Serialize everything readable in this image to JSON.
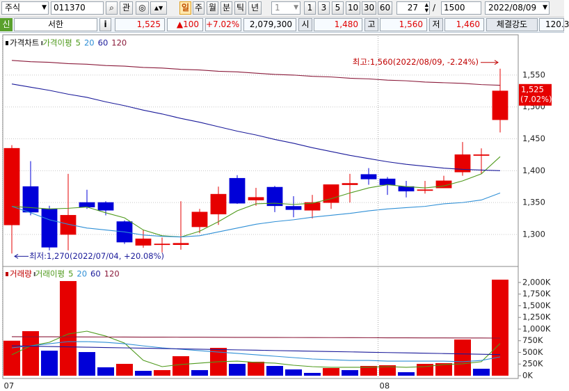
{
  "toolbar": {
    "market": "주식",
    "code": "011370",
    "fav": "관",
    "periods": [
      "일",
      "주",
      "월",
      "분",
      "틱",
      "년"
    ],
    "unit": "1",
    "units": [
      "1",
      "3",
      "5",
      "10",
      "30",
      "60"
    ],
    "count": "27",
    "slash": "/",
    "total": "1500",
    "date": "2022/08/09"
  },
  "quote": {
    "badge": "신",
    "name": "서한",
    "info": "i",
    "price": "1,525",
    "change": "▲100",
    "rate": "+7.02%",
    "volume": "2,079,300",
    "open_label": "시",
    "open": "1,480",
    "high_label": "고",
    "high": "1,560",
    "low_label": "저",
    "low": "1,460",
    "strength_label": "체결강도",
    "strength": "120.3"
  },
  "chart_data": [
    {
      "type": "candlestick",
      "legend_title": "가격차트",
      "ma_title": "가격이평",
      "open": [
        1315,
        1375,
        1340,
        1300,
        1350,
        1350,
        1320,
        1283,
        1284,
        1284,
        1312,
        1332,
        1388,
        1354,
        1374,
        1344,
        1338,
        1350,
        1378,
        1394,
        1387,
        1375,
        1370,
        1373,
        1398,
        1424,
        1480
      ],
      "high": [
        1440,
        1415,
        1345,
        1395,
        1370,
        1352,
        1322,
        1307,
        1295,
        1352,
        1340,
        1375,
        1393,
        1373,
        1376,
        1360,
        1362,
        1378,
        1395,
        1404,
        1390,
        1384,
        1384,
        1392,
        1445,
        1435,
        1560
      ],
      "low": [
        1270,
        1330,
        1275,
        1275,
        1340,
        1330,
        1285,
        1279,
        1272,
        1276,
        1302,
        1315,
        1348,
        1345,
        1335,
        1327,
        1325,
        1340,
        1350,
        1378,
        1362,
        1358,
        1364,
        1373,
        1392,
        1395,
        1460
      ],
      "close": [
        1435,
        1335,
        1280,
        1330,
        1343,
        1338,
        1288,
        1293,
        1285,
        1286,
        1335,
        1363,
        1349,
        1358,
        1345,
        1339,
        1350,
        1378,
        1380,
        1387,
        1378,
        1368,
        1370,
        1384,
        1425,
        1425,
        1525
      ],
      "up_color": "#e60000",
      "down_color": "#0000d8",
      "series": [
        {
          "name": "5",
          "color": "#4f9a1c",
          "values": [
            1344,
            1342,
            1340,
            1341,
            1343,
            1334,
            1326,
            1307,
            1298,
            1296,
            1305,
            1320,
            1337,
            1348,
            1349,
            1347,
            1349,
            1356,
            1365,
            1373,
            1378,
            1375,
            1373,
            1376,
            1384,
            1395,
            1422
          ]
        },
        {
          "name": "20",
          "color": "#2e8fd6",
          "values": [
            1344,
            1334,
            1323,
            1316,
            1310,
            1307,
            1304,
            1299,
            1297,
            1296,
            1298,
            1304,
            1310,
            1316,
            1320,
            1323,
            1327,
            1330,
            1333,
            1337,
            1340,
            1342,
            1344,
            1348,
            1350,
            1354,
            1365
          ]
        },
        {
          "name": "60",
          "color": "#1a1a9a",
          "values": [
            1536,
            1531,
            1526,
            1520,
            1515,
            1508,
            1502,
            1495,
            1489,
            1482,
            1476,
            1469,
            1462,
            1456,
            1449,
            1443,
            1436,
            1430,
            1424,
            1419,
            1414,
            1410,
            1407,
            1404,
            1402,
            1401,
            1400
          ]
        },
        {
          "name": "120",
          "color": "#8a1a3a",
          "values": [
            1573,
            1571,
            1570,
            1568,
            1567,
            1565,
            1564,
            1562,
            1561,
            1559,
            1558,
            1556,
            1555,
            1553,
            1551,
            1550,
            1548,
            1547,
            1545,
            1544,
            1542,
            1541,
            1539,
            1538,
            1537,
            1535,
            1534
          ]
        }
      ],
      "ylim": [
        1253,
        1611
      ],
      "yticks": [
        {
          "value": 1300,
          "label": "1,300"
        },
        {
          "value": 1350,
          "label": "1,350"
        },
        {
          "value": 1400,
          "label": "1,400"
        },
        {
          "value": 1450,
          "label": "1,450"
        },
        {
          "value": 1500,
          "label": "1,500"
        },
        {
          "value": 1550,
          "label": "1,550"
        }
      ],
      "grid": true,
      "annotations": {
        "high": "최고:1,560(2022/08/09, -2.24%)",
        "low": "최저:1,270(2022/07/04, +20.08%)",
        "last_price": "1,525",
        "last_change": "(7.02%)"
      }
    },
    {
      "type": "bar",
      "legend_title": "거래량",
      "ma_title": "거래이평",
      "categories": [
        "07",
        null,
        null,
        null,
        null,
        null,
        null,
        null,
        null,
        null,
        null,
        null,
        null,
        null,
        null,
        null,
        null,
        null,
        null,
        null,
        "08",
        null,
        null,
        null,
        null,
        null,
        null
      ],
      "values": [
        750,
        955,
        537,
        2030,
        507,
        180,
        254,
        104,
        120,
        418,
        120,
        597,
        254,
        299,
        209,
        134,
        60,
        164,
        120,
        209,
        224,
        75,
        254,
        269,
        776,
        149,
        2060
      ],
      "up_color": "#e60000",
      "down_color": "#0000d8",
      "series": [
        {
          "name": "5",
          "color": "#4f9a1c",
          "values": [
            450,
            640,
            716,
            895,
            955,
            850,
            700,
            330,
            194,
            240,
            270,
            300,
            313,
            284,
            270,
            224,
            194,
            180,
            180,
            180,
            194,
            180,
            194,
            240,
            254,
            300,
            690
          ]
        },
        {
          "name": "20",
          "color": "#2e8fd6",
          "values": [
            597,
            640,
            686,
            731,
            731,
            716,
            686,
            640,
            597,
            567,
            537,
            507,
            478,
            448,
            418,
            388,
            358,
            343,
            328,
            328,
            313,
            313,
            313,
            313,
            300,
            328,
            403
          ]
        },
        {
          "name": "60",
          "color": "#1a1a9a",
          "values": [
            640,
            633,
            626,
            619,
            611,
            604,
            597,
            590,
            583,
            575,
            568,
            561,
            554,
            547,
            539,
            532,
            525,
            518,
            511,
            503,
            496,
            489,
            482,
            475,
            467,
            460,
            453
          ]
        },
        {
          "name": "120",
          "color": "#8a1a3a",
          "values": [
            836,
            835,
            834,
            833,
            831,
            830,
            829,
            828,
            827,
            826,
            825,
            824,
            822,
            821,
            820,
            819,
            818,
            817,
            816,
            815,
            813,
            812,
            811,
            810,
            809,
            808,
            806
          ]
        }
      ],
      "ylim": [
        0,
        2313
      ],
      "yticks": [
        {
          "value": 0,
          "label": "0K"
        },
        {
          "value": 250,
          "label": "250K"
        },
        {
          "value": 500,
          "label": "500K"
        },
        {
          "value": 750,
          "label": "750K"
        },
        {
          "value": 1000,
          "label": "1,000K"
        },
        {
          "value": 1250,
          "label": "1,250K"
        },
        {
          "value": 1500,
          "label": "1,500K"
        },
        {
          "value": 1750,
          "label": "1,750K"
        },
        {
          "value": 2000,
          "label": "2,000K"
        }
      ],
      "grid": false
    }
  ]
}
